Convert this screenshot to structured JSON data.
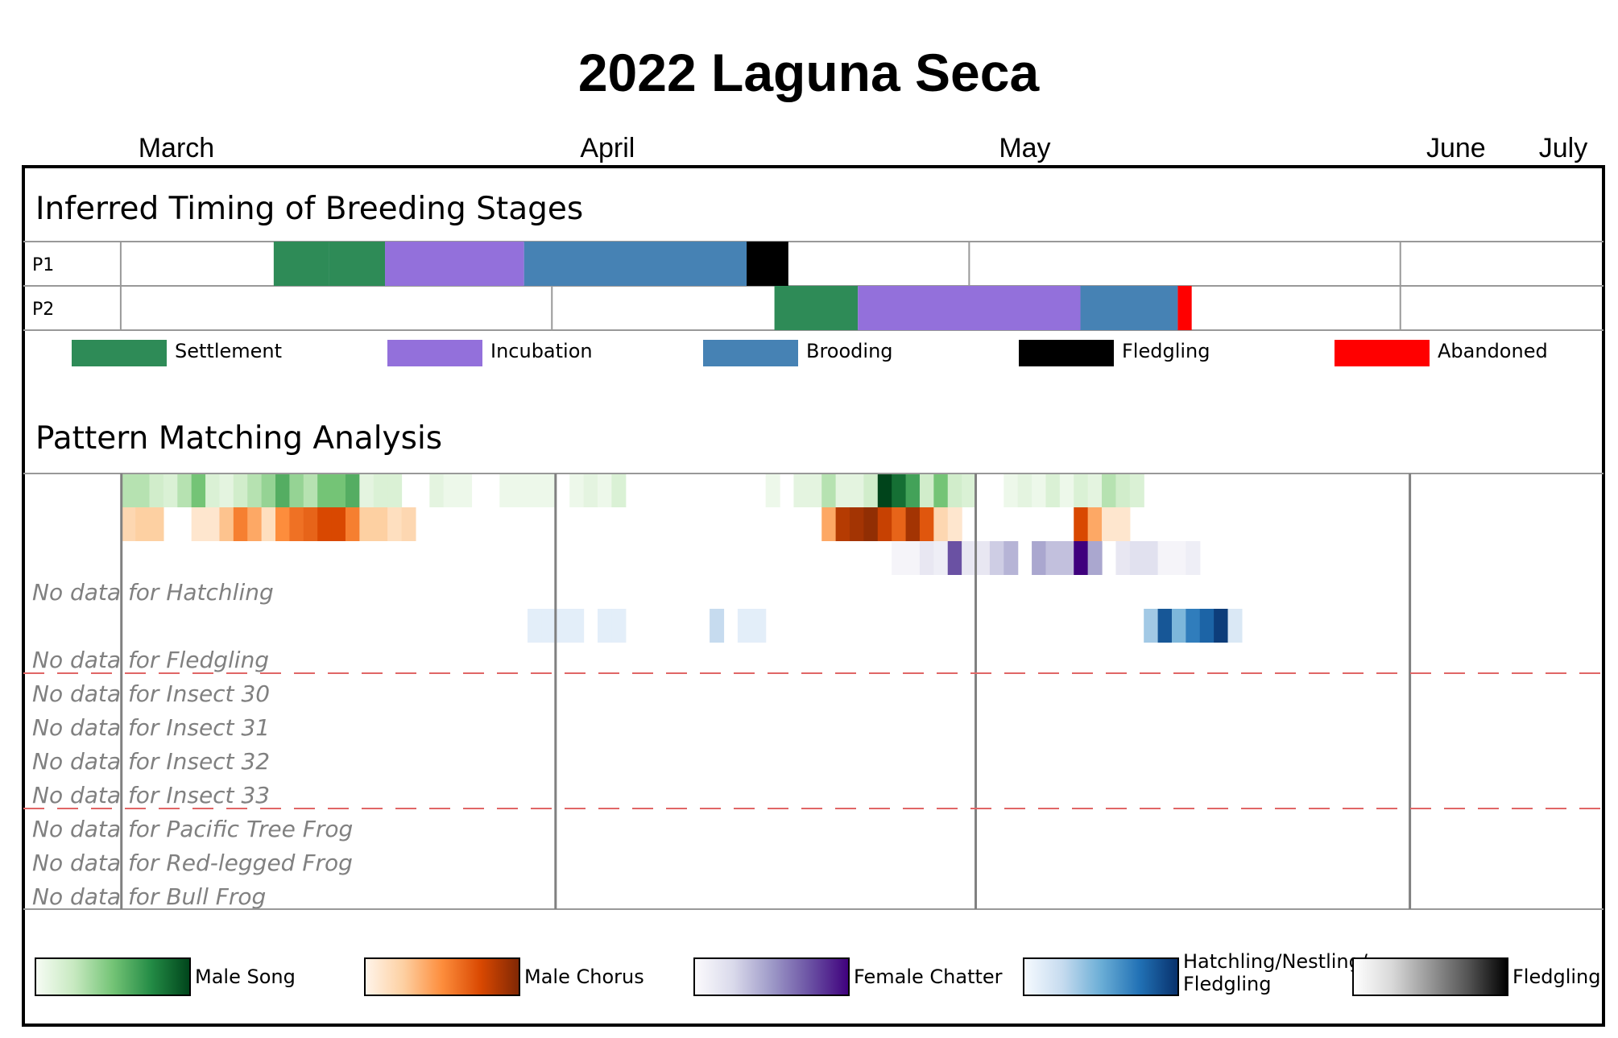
{
  "chart_data": {
    "type": "heatmap",
    "title": "2022 Laguna Seca",
    "months": [
      "March",
      "April",
      "May",
      "June",
      "July"
    ],
    "breeding": {
      "title": "Inferred Timing of Breeding Stages",
      "pairs": [
        {
          "label": "P1",
          "segments": [
            {
              "stage": "Settlement",
              "start": "2022-03-12",
              "end": "2022-03-16"
            },
            {
              "stage": "Settlement",
              "start": "2022-03-16",
              "end": "2022-03-20"
            },
            {
              "stage": "Incubation",
              "start": "2022-03-20",
              "end": "2022-03-30"
            },
            {
              "stage": "Brooding",
              "start": "2022-03-30",
              "end": "2022-04-15"
            },
            {
              "stage": "Fledgling",
              "start": "2022-04-15",
              "end": "2022-04-18"
            }
          ]
        },
        {
          "label": "P2",
          "segments": [
            {
              "stage": "Settlement",
              "start": "2022-04-17",
              "end": "2022-04-23"
            },
            {
              "stage": "Incubation",
              "start": "2022-04-23",
              "end": "2022-05-09"
            },
            {
              "stage": "Brooding",
              "start": "2022-05-09",
              "end": "2022-05-16"
            },
            {
              "stage": "Abandoned",
              "start": "2022-05-16",
              "end": "2022-05-17"
            }
          ]
        }
      ],
      "legend": [
        {
          "name": "Settlement",
          "color": "#2e8b57"
        },
        {
          "name": "Incubation",
          "color": "#9370db"
        },
        {
          "name": "Brooding",
          "color": "#4682b4"
        },
        {
          "name": "Fledgling",
          "color": "#000000"
        },
        {
          "name": "Abandoned",
          "color": "#ff0000"
        }
      ]
    },
    "pattern": {
      "title": "Pattern Matching Analysis",
      "rows": [
        {
          "key": "male_song",
          "colormap": "Greens",
          "values": [
            [
              "2022-03-01",
              0.3
            ],
            [
              "2022-03-02",
              0.3
            ],
            [
              "2022-03-03",
              0.2
            ],
            [
              "2022-03-04",
              0.15
            ],
            [
              "2022-03-05",
              0.3
            ],
            [
              "2022-03-06",
              0.5
            ],
            [
              "2022-03-07",
              0.15
            ],
            [
              "2022-03-08",
              0.1
            ],
            [
              "2022-03-09",
              0.2
            ],
            [
              "2022-03-10",
              0.3
            ],
            [
              "2022-03-11",
              0.4
            ],
            [
              "2022-03-12",
              0.6
            ],
            [
              "2022-03-13",
              0.4
            ],
            [
              "2022-03-14",
              0.3
            ],
            [
              "2022-03-15",
              0.5
            ],
            [
              "2022-03-16",
              0.5
            ],
            [
              "2022-03-17",
              0.6
            ],
            [
              "2022-03-18",
              0.1
            ],
            [
              "2022-03-19",
              0.15
            ],
            [
              "2022-03-20",
              0.15
            ],
            [
              "2022-03-23",
              0.1
            ],
            [
              "2022-03-24",
              0.05
            ],
            [
              "2022-03-25",
              0.05
            ],
            [
              "2022-03-28",
              0.05
            ],
            [
              "2022-03-29",
              0.05
            ],
            [
              "2022-03-30",
              0.05
            ],
            [
              "2022-03-31",
              0.05
            ],
            [
              "2022-04-02",
              0.05
            ],
            [
              "2022-04-03",
              0.1
            ],
            [
              "2022-04-04",
              0.05
            ],
            [
              "2022-04-05",
              0.15
            ],
            [
              "2022-04-16",
              0.05
            ],
            [
              "2022-04-18",
              0.1
            ],
            [
              "2022-04-19",
              0.1
            ],
            [
              "2022-04-20",
              0.3
            ],
            [
              "2022-04-21",
              0.1
            ],
            [
              "2022-04-22",
              0.1
            ],
            [
              "2022-04-23",
              0.2
            ],
            [
              "2022-04-24",
              1.0
            ],
            [
              "2022-04-25",
              0.85
            ],
            [
              "2022-04-26",
              0.65
            ],
            [
              "2022-04-27",
              0.2
            ],
            [
              "2022-04-28",
              0.5
            ],
            [
              "2022-04-29",
              0.2
            ],
            [
              "2022-04-30",
              0.15
            ],
            [
              "2022-05-03",
              0.05
            ],
            [
              "2022-05-04",
              0.1
            ],
            [
              "2022-05-05",
              0.05
            ],
            [
              "2022-05-06",
              0.15
            ],
            [
              "2022-05-07",
              0.05
            ],
            [
              "2022-05-08",
              0.15
            ],
            [
              "2022-05-09",
              0.1
            ],
            [
              "2022-05-10",
              0.3
            ],
            [
              "2022-05-11",
              0.2
            ],
            [
              "2022-05-12",
              0.15
            ]
          ]
        },
        {
          "key": "male_chorus",
          "colormap": "Oranges",
          "values": [
            [
              "2022-03-01",
              0.2
            ],
            [
              "2022-03-02",
              0.25
            ],
            [
              "2022-03-03",
              0.25
            ],
            [
              "2022-03-06",
              0.1
            ],
            [
              "2022-03-07",
              0.1
            ],
            [
              "2022-03-08",
              0.3
            ],
            [
              "2022-03-09",
              0.55
            ],
            [
              "2022-03-10",
              0.4
            ],
            [
              "2022-03-11",
              0.15
            ],
            [
              "2022-03-12",
              0.5
            ],
            [
              "2022-03-13",
              0.6
            ],
            [
              "2022-03-14",
              0.65
            ],
            [
              "2022-03-15",
              0.75
            ],
            [
              "2022-03-16",
              0.75
            ],
            [
              "2022-03-17",
              0.55
            ],
            [
              "2022-03-18",
              0.25
            ],
            [
              "2022-03-19",
              0.25
            ],
            [
              "2022-03-20",
              0.15
            ],
            [
              "2022-03-21",
              0.2
            ],
            [
              "2022-04-20",
              0.4
            ],
            [
              "2022-04-21",
              0.85
            ],
            [
              "2022-04-22",
              0.9
            ],
            [
              "2022-04-23",
              0.95
            ],
            [
              "2022-04-24",
              0.8
            ],
            [
              "2022-04-25",
              0.65
            ],
            [
              "2022-04-26",
              0.9
            ],
            [
              "2022-04-27",
              0.7
            ],
            [
              "2022-04-28",
              0.2
            ],
            [
              "2022-04-29",
              0.1
            ],
            [
              "2022-05-08",
              0.75
            ],
            [
              "2022-05-09",
              0.4
            ],
            [
              "2022-05-10",
              0.1
            ],
            [
              "2022-05-11",
              0.1
            ]
          ]
        },
        {
          "key": "female_chatter",
          "colormap": "Purples",
          "values": [
            [
              "2022-04-25",
              0.05
            ],
            [
              "2022-04-26",
              0.05
            ],
            [
              "2022-04-27",
              0.15
            ],
            [
              "2022-04-28",
              0.1
            ],
            [
              "2022-04-29",
              0.75
            ],
            [
              "2022-04-30",
              0.15
            ],
            [
              "2022-05-01",
              0.15
            ],
            [
              "2022-05-02",
              0.3
            ],
            [
              "2022-05-03",
              0.4
            ],
            [
              "2022-05-05",
              0.45
            ],
            [
              "2022-05-06",
              0.35
            ],
            [
              "2022-05-07",
              0.35
            ],
            [
              "2022-05-08",
              1.0
            ],
            [
              "2022-05-09",
              0.45
            ],
            [
              "2022-05-11",
              0.15
            ],
            [
              "2022-05-12",
              0.2
            ],
            [
              "2022-05-13",
              0.2
            ],
            [
              "2022-05-14",
              0.05
            ],
            [
              "2022-05-15",
              0.05
            ],
            [
              "2022-05-16",
              0.1
            ]
          ]
        },
        {
          "key": "hatchling",
          "label": "No data for Hatchling"
        },
        {
          "key": "nestling",
          "colormap": "Blues",
          "values": [
            [
              "2022-03-30",
              0.1
            ],
            [
              "2022-03-31",
              0.1
            ],
            [
              "2022-04-01",
              0.1
            ],
            [
              "2022-04-02",
              0.1
            ],
            [
              "2022-04-04",
              0.1
            ],
            [
              "2022-04-05",
              0.1
            ],
            [
              "2022-04-12",
              0.25
            ],
            [
              "2022-04-14",
              0.1
            ],
            [
              "2022-04-15",
              0.1
            ],
            [
              "2022-05-13",
              0.35
            ],
            [
              "2022-05-14",
              0.85
            ],
            [
              "2022-05-15",
              0.45
            ],
            [
              "2022-05-16",
              0.7
            ],
            [
              "2022-05-17",
              0.8
            ],
            [
              "2022-05-18",
              0.95
            ],
            [
              "2022-05-19",
              0.15
            ]
          ]
        },
        {
          "key": "fledgling",
          "label": "No data for Fledgling"
        },
        {
          "key": "insect30",
          "label": "No data for Insect 30"
        },
        {
          "key": "insect31",
          "label": "No data for Insect 31"
        },
        {
          "key": "insect32",
          "label": "No data for Insect 32"
        },
        {
          "key": "insect33",
          "label": "No data for Insect 33"
        },
        {
          "key": "tree_frog",
          "label": "No data for Pacific Tree Frog"
        },
        {
          "key": "red_frog",
          "label": "No data for Red-legged Frog"
        },
        {
          "key": "bull_frog",
          "label": "No data for Bull Frog"
        }
      ],
      "colorbars": [
        {
          "name": "Male Song",
          "colormap": "Greens"
        },
        {
          "name": "Male Chorus",
          "colormap": "Oranges"
        },
        {
          "name": "Female Chatter",
          "colormap": "Purples"
        },
        {
          "name": "Hatchling/Nestling/\nFledgling",
          "colormap": "Blues"
        },
        {
          "name": "Fledgling",
          "colormap": "Greys"
        }
      ]
    }
  },
  "colormaps": {
    "Greens": [
      "#f7fcf5",
      "#c7e9c0",
      "#74c476",
      "#238b45",
      "#00441b"
    ],
    "Oranges": [
      "#fff5eb",
      "#fdd0a2",
      "#fd8d3c",
      "#d94801",
      "#7f2704"
    ],
    "Purples": [
      "#fcfbfd",
      "#dadaeb",
      "#9e9ac8",
      "#6a51a3",
      "#3f007d"
    ],
    "Blues": [
      "#f7fbff",
      "#c6dbef",
      "#6baed6",
      "#2171b5",
      "#08306b"
    ],
    "Greys": [
      "#ffffff",
      "#d9d9d9",
      "#969696",
      "#525252",
      "#000000"
    ]
  }
}
